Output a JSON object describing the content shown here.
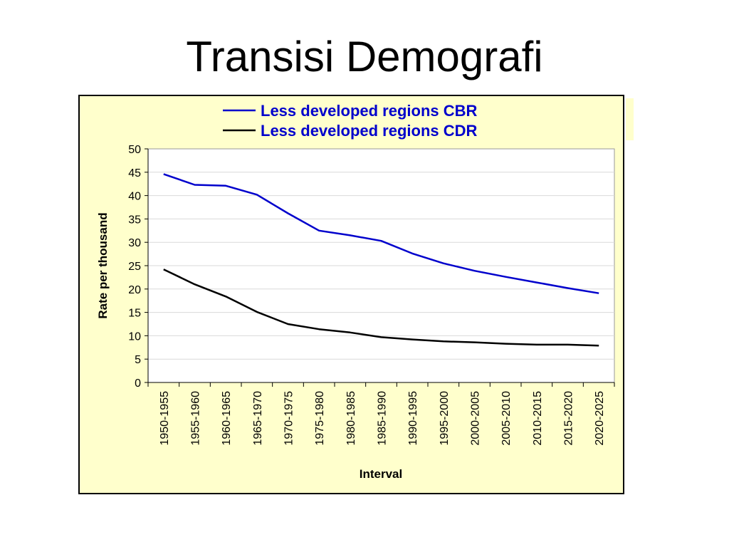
{
  "slide": {
    "title": "Transisi Demografi"
  },
  "chart_data": {
    "type": "line",
    "title": "",
    "xlabel": "Interval",
    "ylabel": "Rate per thousand",
    "ylim": [
      0,
      50
    ],
    "yticks": [
      0,
      5,
      10,
      15,
      20,
      25,
      30,
      35,
      40,
      45,
      50
    ],
    "grid": true,
    "legend_position": "top",
    "categories": [
      "1950-1955",
      "1955-1960",
      "1960-1965",
      "1965-1970",
      "1970-1975",
      "1975-1980",
      "1980-1985",
      "1985-1990",
      "1990-1995",
      "1995-2000",
      "2000-2005",
      "2005-2010",
      "2010-2015",
      "2015-2020",
      "2020-2025"
    ],
    "series": [
      {
        "name": "Less developed regions CBR",
        "color": "#0000cc",
        "values": [
          44.6,
          42.3,
          42.1,
          40.2,
          36.2,
          32.5,
          31.5,
          30.3,
          27.6,
          25.5,
          23.9,
          22.6,
          21.4,
          20.2,
          19.1
        ]
      },
      {
        "name": "Less developed regions CDR",
        "color": "#000000",
        "values": [
          24.2,
          21.0,
          18.4,
          15.1,
          12.5,
          11.4,
          10.7,
          9.7,
          9.2,
          8.8,
          8.6,
          8.3,
          8.1,
          8.1,
          7.9
        ]
      }
    ],
    "colors": {
      "frame_background": "#ffffcc",
      "plot_background": "#ffffff",
      "gridline": "#d9d9d9",
      "legend_text": "#0000cc"
    }
  }
}
